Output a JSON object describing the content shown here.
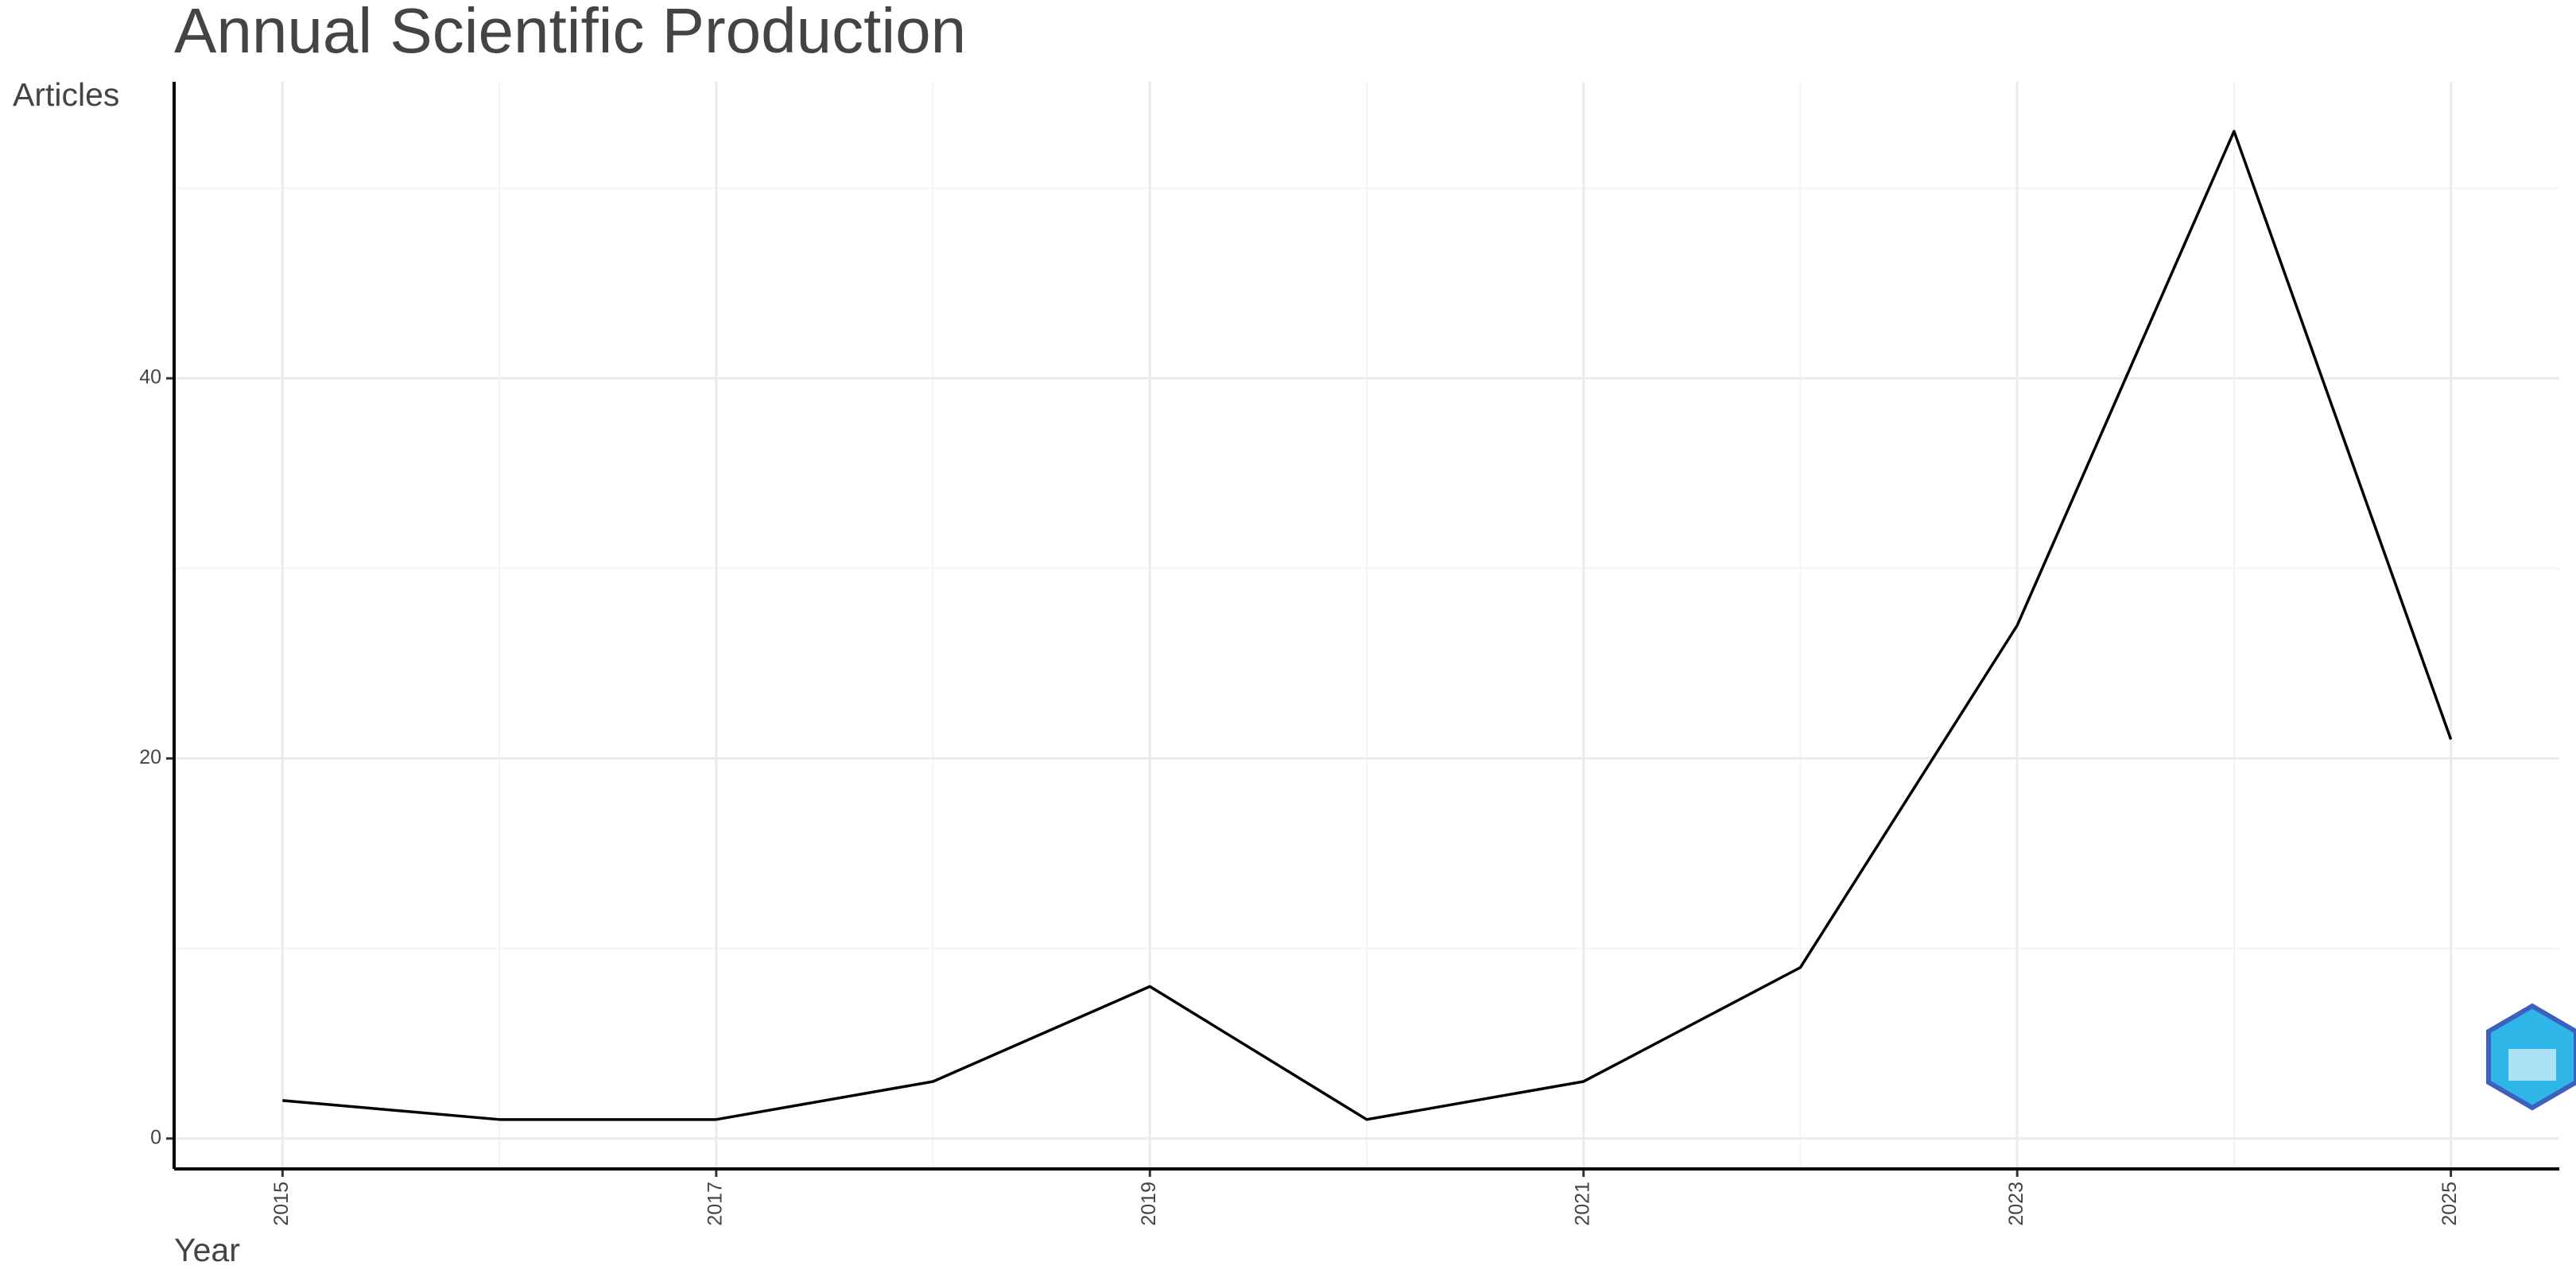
{
  "chart_data": {
    "type": "line",
    "title": "Annual Scientific Production",
    "x_label": "Year",
    "y_label": "Articles",
    "x": [
      2015,
      2016,
      2017,
      2018,
      2019,
      2020,
      2021,
      2022,
      2023,
      2024,
      2025
    ],
    "series": [
      {
        "name": "Articles",
        "color": "#000000",
        "values": [
          2,
          1,
          1,
          3,
          8,
          1,
          3,
          9,
          27,
          53,
          21
        ]
      }
    ],
    "xlim": [
      2014.5,
      2025.5
    ],
    "xticks": [
      2015,
      2017,
      2019,
      2021,
      2023,
      2025
    ],
    "minor_xticks": [
      2016,
      2018,
      2020,
      2022,
      2024
    ],
    "ylim": [
      -1.6,
      55.6
    ],
    "yticks": [
      0,
      20,
      40
    ],
    "minor_yticks": [
      10,
      30,
      50
    ],
    "grid": true
  }
}
